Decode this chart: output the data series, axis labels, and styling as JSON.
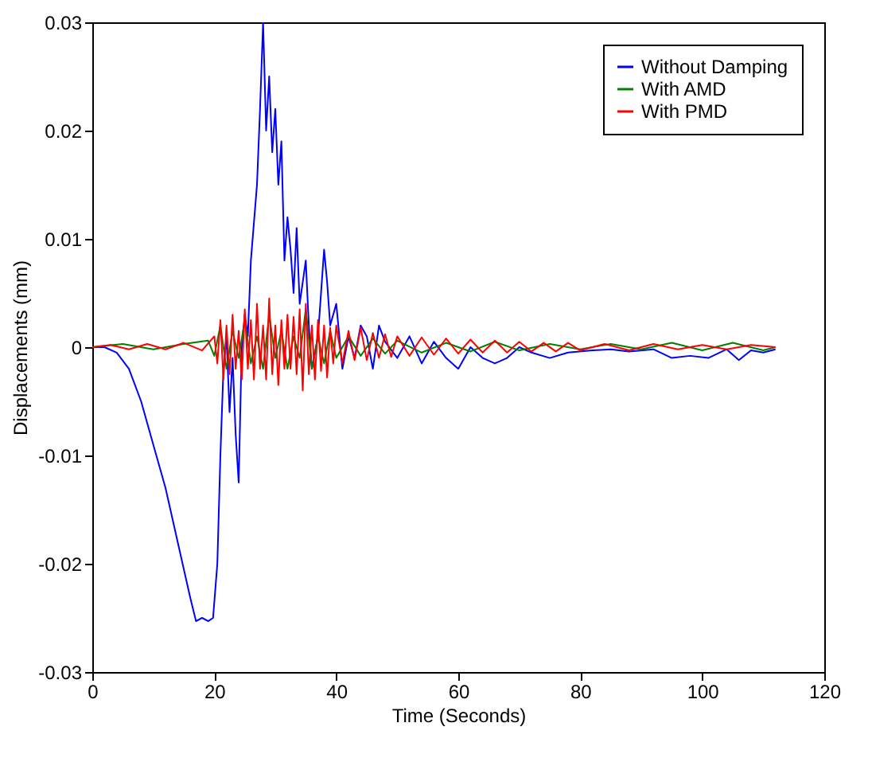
{
  "chart_data": {
    "type": "line",
    "xlabel": "Time (Seconds)",
    "ylabel": "Displacements (mm)",
    "xlim": [
      0,
      120
    ],
    "xticks": [
      0,
      20,
      40,
      60,
      80,
      100,
      120
    ],
    "ylim": [
      -0.03,
      0.03
    ],
    "yticks": [
      -0.03,
      -0.02,
      -0.01,
      0,
      0.01,
      0.02,
      0.03
    ],
    "legend": "top right",
    "grid": false,
    "series": [
      {
        "name": "Without Damping",
        "color": "#0000ff",
        "x": [
          0,
          2,
          4,
          6,
          8,
          10,
          12,
          14,
          16,
          17,
          18,
          19,
          19.8,
          20.5,
          21,
          21.5,
          22,
          22.5,
          23,
          23.5,
          24,
          24.5,
          25,
          25.5,
          26,
          27,
          27.5,
          28,
          28.5,
          29,
          29.5,
          30,
          30.5,
          31,
          31.5,
          32,
          32.5,
          33,
          33.5,
          34,
          35,
          35.5,
          36,
          37,
          38,
          38.5,
          39,
          40,
          40.5,
          41,
          42,
          43,
          44,
          45,
          46,
          47,
          48,
          50,
          52,
          54,
          56,
          58,
          60,
          62,
          64,
          66,
          68,
          70,
          72,
          75,
          78,
          82,
          85,
          88,
          92,
          95,
          98,
          101,
          104,
          106,
          108,
          110,
          112
        ],
        "values": [
          0,
          0,
          -0.0005,
          -0.002,
          -0.005,
          -0.009,
          -0.013,
          -0.018,
          -0.023,
          -0.0253,
          -0.025,
          -0.0253,
          -0.025,
          -0.02,
          -0.01,
          -0.002,
          0.001,
          -0.006,
          -0.001,
          -0.008,
          -0.0125,
          0,
          0.003,
          0.001,
          0.008,
          0.015,
          0.022,
          0.03,
          0.02,
          0.025,
          0.018,
          0.022,
          0.015,
          0.019,
          0.008,
          0.012,
          0.009,
          0.005,
          0.011,
          0.004,
          0.008,
          0.002,
          -0.002,
          0.001,
          0.009,
          0.006,
          0.002,
          0.004,
          0.001,
          -0.002,
          0.001,
          -0.001,
          0.002,
          0.001,
          -0.002,
          0.002,
          0.0005,
          -0.001,
          0.001,
          -0.0015,
          0.0005,
          -0.001,
          -0.002,
          0,
          -0.001,
          -0.0015,
          -0.001,
          0,
          -0.0005,
          -0.001,
          -0.0005,
          -0.0003,
          -0.0002,
          -0.0004,
          -0.0002,
          -0.001,
          -0.0008,
          -0.001,
          -0.0002,
          -0.0012,
          -0.0003,
          -0.0005,
          -0.0002
        ]
      },
      {
        "name": "With AMD",
        "color": "#008000",
        "x": [
          0,
          5,
          10,
          15,
          19,
          20,
          21,
          22,
          23,
          24,
          25,
          26,
          27,
          28,
          29,
          30,
          31,
          32,
          33,
          34,
          35,
          36,
          37,
          38,
          39,
          40,
          42,
          44,
          46,
          48,
          50,
          54,
          58,
          62,
          66,
          70,
          75,
          80,
          85,
          90,
          95,
          100,
          105,
          110,
          112
        ],
        "values": [
          0,
          0.0003,
          -0.0002,
          0.0003,
          0.0006,
          -0.0008,
          0.002,
          -0.002,
          0.0015,
          -0.001,
          0.0025,
          -0.0015,
          0.001,
          -0.002,
          0.003,
          -0.001,
          0.0015,
          -0.002,
          0.001,
          -0.001,
          0.0035,
          -0.002,
          0.001,
          -0.0015,
          0.0015,
          -0.001,
          0.001,
          -0.0008,
          0.0008,
          -0.0006,
          0.0006,
          -0.0005,
          0.0004,
          -0.0004,
          0.0005,
          -0.0003,
          0.0003,
          -0.0002,
          0.0003,
          -0.0002,
          0.0004,
          -0.0003,
          0.0004,
          -0.0003,
          0
        ]
      },
      {
        "name": "With PMD",
        "color": "#ff0000",
        "x": [
          0,
          3,
          6,
          9,
          12,
          15,
          18,
          20,
          20.5,
          21,
          21.5,
          22,
          22.5,
          23,
          23.5,
          24,
          24.5,
          25,
          25.5,
          26,
          26.5,
          27,
          27.5,
          28,
          28.5,
          29,
          29.5,
          30,
          30.5,
          31,
          31.5,
          32,
          32.5,
          33,
          33.5,
          34,
          34.5,
          35,
          35.5,
          36,
          36.5,
          37,
          37.5,
          38,
          38.5,
          39,
          39.5,
          40,
          41,
          42,
          43,
          44,
          45,
          46,
          47,
          48,
          49,
          50,
          52,
          54,
          56,
          58,
          60,
          62,
          64,
          66,
          68,
          70,
          72,
          74,
          76,
          78,
          80,
          84,
          88,
          92,
          96,
          100,
          104,
          108,
          112
        ],
        "values": [
          0,
          0.0002,
          -0.0002,
          0.0003,
          -0.0002,
          0.0004,
          -0.0003,
          0.001,
          -0.0015,
          0.0025,
          -0.003,
          0.002,
          -0.0025,
          0.003,
          -0.002,
          0.0015,
          -0.003,
          0.0035,
          -0.002,
          0.0025,
          -0.003,
          0.004,
          -0.002,
          0.002,
          -0.003,
          0.0045,
          -0.0025,
          0.002,
          -0.0035,
          0.0025,
          -0.002,
          0.003,
          -0.002,
          0.0028,
          -0.0025,
          0.0035,
          -0.004,
          0.004,
          -0.0025,
          0.002,
          -0.003,
          0.0025,
          -0.0022,
          0.002,
          -0.0028,
          0.0018,
          -0.0015,
          0.002,
          -0.0015,
          0.0015,
          -0.0012,
          0.0018,
          -0.0012,
          0.0013,
          -0.001,
          0.0012,
          -0.0009,
          0.001,
          -0.0008,
          0.0009,
          -0.0007,
          0.0008,
          -0.0006,
          0.0007,
          -0.0005,
          0.0006,
          -0.0005,
          0.0005,
          -0.0004,
          0.0004,
          -0.0004,
          0.0004,
          -0.0003,
          0.0003,
          -0.0003,
          0.0003,
          -0.0002,
          0.0002,
          -0.0002,
          0.0002,
          0
        ]
      }
    ]
  }
}
